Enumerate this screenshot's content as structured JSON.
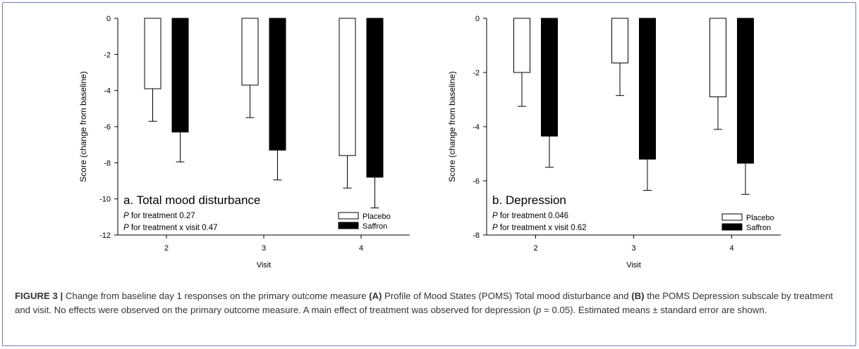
{
  "figure": {
    "label": "FIGURE 3 |",
    "caption_parts": [
      {
        "text": " Change from baseline day 1 responses on the primary outcome measure ",
        "style": "normal"
      },
      {
        "text": "(A)",
        "style": "bold"
      },
      {
        "text": " Profile of Mood States (POMS) Total mood disturbance and ",
        "style": "normal"
      },
      {
        "text": "(B)",
        "style": "bold"
      },
      {
        "text": " the POMS Depression subscale by treatment and visit. No effects were observed on the primary outcome measure. A main effect of treatment was observed for depression (",
        "style": "normal"
      },
      {
        "text": "p",
        "style": "italic"
      },
      {
        "text": " = 0.05). Estimated means ± standard error are shown.",
        "style": "normal"
      }
    ]
  },
  "chart_data": [
    {
      "type": "bar",
      "title": "a. Total mood disturbance",
      "xlabel": "Visit",
      "ylabel": "Score (change from baseline)",
      "categories": [
        "2",
        "3",
        "4"
      ],
      "ylim": [
        -12,
        0
      ],
      "yticks": [
        0,
        -2,
        -4,
        -6,
        -8,
        -10,
        -12
      ],
      "series": [
        {
          "name": "Placebo",
          "color": "#ffffff",
          "values": [
            -3.9,
            -3.7,
            -7.6
          ],
          "errors": [
            1.8,
            1.8,
            1.8
          ]
        },
        {
          "name": "Saffron",
          "color": "#000000",
          "values": [
            -6.3,
            -7.3,
            -8.8
          ],
          "errors": [
            1.65,
            1.65,
            1.7
          ]
        }
      ],
      "annotations": [
        {
          "p": "P",
          "text": " for treatment 0.27"
        },
        {
          "p": "P",
          "text": " for treatment x visit 0.47"
        }
      ],
      "legend_position": "bottom-right",
      "grid": false
    },
    {
      "type": "bar",
      "title": "b. Depression",
      "xlabel": "Visit",
      "ylabel": "Score (change from baseline)",
      "categories": [
        "2",
        "3",
        "4"
      ],
      "ylim": [
        -8,
        0
      ],
      "yticks": [
        0,
        -2,
        -4,
        -6,
        -8
      ],
      "series": [
        {
          "name": "Placebo",
          "color": "#ffffff",
          "values": [
            -2.0,
            -1.65,
            -2.9
          ],
          "errors": [
            1.25,
            1.2,
            1.2
          ]
        },
        {
          "name": "Saffron",
          "color": "#000000",
          "values": [
            -4.35,
            -5.2,
            -5.35
          ],
          "errors": [
            1.15,
            1.15,
            1.15
          ]
        }
      ],
      "annotations": [
        {
          "p": "P",
          "text": " for treatment 0.046"
        },
        {
          "p": "P",
          "text": " for treatment x visit 0.62"
        }
      ],
      "legend_position": "bottom-right",
      "grid": false
    }
  ]
}
